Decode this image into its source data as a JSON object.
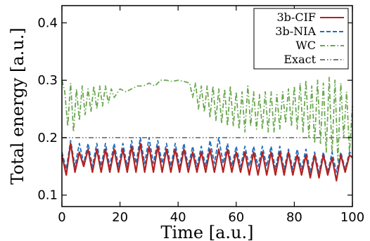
{
  "chart_data": {
    "type": "line",
    "xlabel": "Time [a.u.]",
    "ylabel": "Total energy [a.u.]",
    "xlim": [
      0,
      100
    ],
    "ylim": [
      0.08,
      0.43
    ],
    "xticks": [
      0,
      20,
      40,
      60,
      80,
      100
    ],
    "yticks": [
      0.1,
      0.2,
      0.3,
      0.4
    ],
    "xtick_labels": [
      "0",
      "20",
      "40",
      "60",
      "80",
      "100"
    ],
    "ytick_labels": [
      "0.1",
      "0.2",
      "0.3",
      "0.4"
    ],
    "legend_position": "top-right",
    "grid": false,
    "series": [
      {
        "name": "3b-CIF",
        "color": "#b22222",
        "style": "solid",
        "x": [
          0,
          1.5,
          3,
          4.5,
          6,
          7.5,
          9,
          10.5,
          12,
          13.5,
          15,
          16.5,
          18,
          19.5,
          21,
          22.5,
          24,
          25.5,
          27,
          28.5,
          30,
          31.5,
          33,
          34.5,
          36,
          37.5,
          39,
          40.5,
          42,
          43.5,
          45,
          46.5,
          48,
          49.5,
          51,
          52.5,
          54,
          55.5,
          57,
          58.5,
          60,
          61.5,
          63,
          64.5,
          66,
          67.5,
          69,
          70.5,
          72,
          73.5,
          75,
          76.5,
          78,
          79.5,
          81,
          82.5,
          84,
          85.5,
          87,
          88.5,
          90,
          91.5,
          93,
          94.5,
          96,
          97.5,
          99,
          100
        ],
        "y": [
          0.17,
          0.135,
          0.19,
          0.14,
          0.175,
          0.15,
          0.18,
          0.14,
          0.18,
          0.14,
          0.18,
          0.14,
          0.18,
          0.14,
          0.18,
          0.14,
          0.185,
          0.14,
          0.19,
          0.14,
          0.185,
          0.14,
          0.185,
          0.14,
          0.18,
          0.14,
          0.18,
          0.14,
          0.18,
          0.14,
          0.175,
          0.14,
          0.175,
          0.14,
          0.18,
          0.14,
          0.18,
          0.14,
          0.18,
          0.14,
          0.175,
          0.14,
          0.175,
          0.135,
          0.175,
          0.135,
          0.175,
          0.135,
          0.175,
          0.135,
          0.175,
          0.135,
          0.175,
          0.135,
          0.17,
          0.135,
          0.17,
          0.13,
          0.17,
          0.13,
          0.17,
          0.135,
          0.165,
          0.125,
          0.17,
          0.14,
          0.17,
          0.165
        ]
      },
      {
        "name": "3b-NIA",
        "color": "#1f6fbf",
        "style": "dashed",
        "x": [
          0,
          1.5,
          3,
          4.5,
          6,
          7.5,
          9,
          10.5,
          12,
          13.5,
          15,
          16.5,
          18,
          19.5,
          21,
          22.5,
          24,
          25.5,
          27,
          28.5,
          30,
          31.5,
          33,
          34.5,
          36,
          37.5,
          39,
          40.5,
          42,
          43.5,
          45,
          46.5,
          48,
          49.5,
          51,
          52.5,
          54,
          55.5,
          57,
          58.5,
          60,
          61.5,
          63,
          64.5,
          66,
          67.5,
          69,
          70.5,
          72,
          73.5,
          75,
          76.5,
          78,
          79.5,
          81,
          82.5,
          84,
          85.5,
          87,
          88.5,
          90,
          91.5,
          93,
          94.5,
          96,
          97.5,
          99,
          100
        ],
        "y": [
          0.175,
          0.145,
          0.195,
          0.15,
          0.19,
          0.155,
          0.19,
          0.15,
          0.19,
          0.15,
          0.19,
          0.15,
          0.19,
          0.15,
          0.19,
          0.15,
          0.195,
          0.155,
          0.2,
          0.155,
          0.2,
          0.155,
          0.195,
          0.155,
          0.19,
          0.15,
          0.19,
          0.15,
          0.19,
          0.15,
          0.185,
          0.15,
          0.185,
          0.15,
          0.195,
          0.155,
          0.2,
          0.155,
          0.19,
          0.15,
          0.185,
          0.15,
          0.185,
          0.15,
          0.185,
          0.15,
          0.185,
          0.15,
          0.185,
          0.145,
          0.185,
          0.145,
          0.18,
          0.145,
          0.18,
          0.145,
          0.18,
          0.14,
          0.175,
          0.14,
          0.175,
          0.14,
          0.175,
          0.14,
          0.175,
          0.145,
          0.175,
          0.17
        ]
      },
      {
        "name": "WC",
        "color": "#6aa84f",
        "style": "dash-dot",
        "x": [
          0,
          1,
          2,
          3,
          4,
          5,
          6,
          7,
          8,
          9,
          10,
          11,
          12,
          13,
          14,
          15,
          16,
          17,
          18,
          20,
          22,
          24,
          26,
          28,
          30,
          32,
          34,
          36,
          38,
          40,
          42,
          44,
          45,
          46,
          47,
          48,
          49,
          50,
          51,
          52,
          53,
          54,
          55,
          56,
          57,
          58,
          59,
          60,
          61,
          62,
          63,
          64,
          65,
          66,
          67,
          68,
          69,
          70,
          71,
          72,
          73,
          74,
          75,
          76,
          77,
          78,
          79,
          80,
          81,
          82,
          83,
          84,
          85,
          86,
          87,
          88,
          89,
          90,
          91,
          92,
          93,
          94,
          95,
          96,
          97,
          98,
          99,
          100
        ],
        "y": [
          0.3,
          0.28,
          0.22,
          0.295,
          0.21,
          0.285,
          0.23,
          0.29,
          0.24,
          0.285,
          0.245,
          0.29,
          0.25,
          0.29,
          0.255,
          0.29,
          0.26,
          0.285,
          0.27,
          0.285,
          0.28,
          0.285,
          0.29,
          0.29,
          0.295,
          0.29,
          0.3,
          0.3,
          0.298,
          0.3,
          0.298,
          0.295,
          0.27,
          0.295,
          0.25,
          0.29,
          0.245,
          0.29,
          0.235,
          0.29,
          0.23,
          0.285,
          0.225,
          0.285,
          0.22,
          0.29,
          0.22,
          0.28,
          0.215,
          0.28,
          0.21,
          0.29,
          0.22,
          0.28,
          0.215,
          0.275,
          0.215,
          0.28,
          0.21,
          0.28,
          0.21,
          0.275,
          0.215,
          0.28,
          0.225,
          0.285,
          0.22,
          0.29,
          0.215,
          0.295,
          0.21,
          0.3,
          0.2,
          0.29,
          0.19,
          0.3,
          0.19,
          0.295,
          0.175,
          0.305,
          0.17,
          0.3,
          0.16,
          0.295,
          0.2,
          0.28,
          0.175,
          0.255
        ]
      },
      {
        "name": "Exact",
        "color": "#777777",
        "style": "dash-dot-dot",
        "x": [
          0,
          100
        ],
        "y": [
          0.2,
          0.2
        ]
      }
    ]
  }
}
